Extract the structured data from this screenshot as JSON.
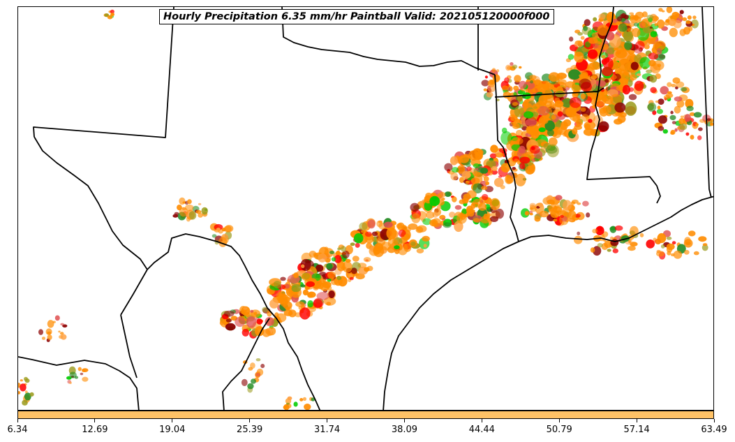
{
  "title": "Hourly Precipitation 6.35 mm/hr Paintball Valid: 202105120000f000",
  "colorbar": {
    "color": "#ffc266",
    "ticks": [
      "6.34",
      "12.69",
      "19.04",
      "25.39",
      "31.74",
      "38.09",
      "44.44",
      "50.79",
      "57.14",
      "63.49"
    ]
  },
  "map": {
    "background": "#ffffff",
    "border_color": "#000000",
    "paintball_colors": [
      "#ff8c00",
      "#ff0000",
      "#228b22",
      "#00cc00",
      "#8b0000",
      "#9a9a1a",
      "#ffa040",
      "#e05050"
    ]
  }
}
